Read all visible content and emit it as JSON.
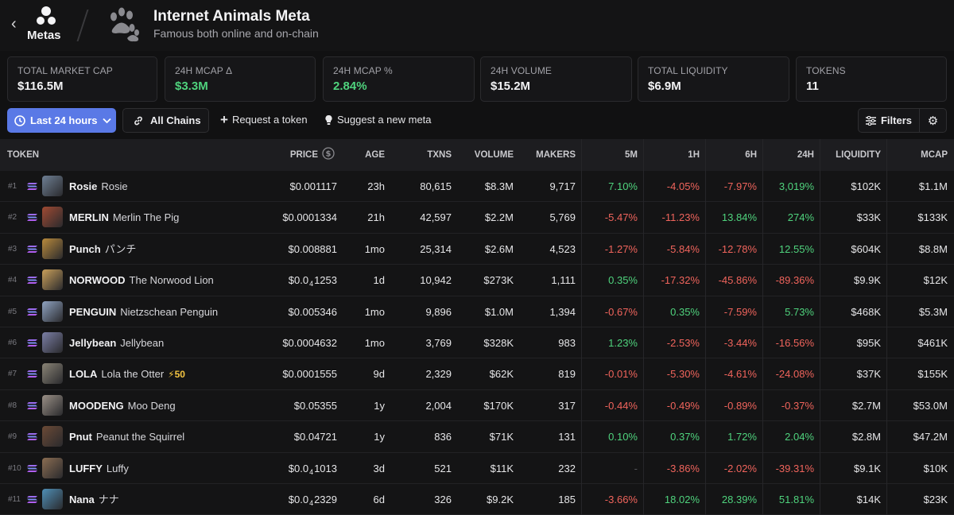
{
  "header": {
    "back_icon": "chevron-left-icon",
    "nav_label": "Metas",
    "title": "Internet Animals Meta",
    "subtitle": "Famous both online and on-chain"
  },
  "stats": [
    {
      "label": "TOTAL MARKET CAP",
      "value": "$116.5M",
      "color": "#f2f2f4"
    },
    {
      "label": "24H MCAP Δ",
      "value": "$3.3M",
      "color": "#4fd37d"
    },
    {
      "label": "24H MCAP %",
      "value": "2.84%",
      "color": "#4fd37d"
    },
    {
      "label": "24H VOLUME",
      "value": "$15.2M",
      "color": "#f2f2f4"
    },
    {
      "label": "TOTAL LIQUIDITY",
      "value": "$6.9M",
      "color": "#f2f2f4"
    },
    {
      "label": "TOKENS",
      "value": "11",
      "color": "#f2f2f4"
    }
  ],
  "toolbar": {
    "time_filter": "Last 24 hours",
    "chains": "All Chains",
    "request": "Request a token",
    "suggest": "Suggest a new meta",
    "filters": "Filters"
  },
  "colors": {
    "accent": "#5a79e6",
    "positive": "#4fd37d",
    "negative": "#f0645c"
  },
  "columns": [
    "TOKEN",
    "PRICE",
    "AGE",
    "TXNS",
    "VOLUME",
    "MAKERS",
    "5M",
    "1H",
    "6H",
    "24H",
    "LIQUIDITY",
    "MCAP"
  ],
  "tokens": [
    {
      "rank": "#1",
      "symbol": "Rosie",
      "name": "Rosie",
      "badge": "",
      "price": "$0.001117",
      "age": "23h",
      "txns": "80,615",
      "volume": "$8.3M",
      "makers": "9,717",
      "m5": "7.10%",
      "h1": "-4.05%",
      "h6": "-7.97%",
      "h24": "3,019%",
      "liquidity": "$102K",
      "mcap": "$1.1M"
    },
    {
      "rank": "#2",
      "symbol": "MERLIN",
      "name": "Merlin The Pig",
      "badge": "",
      "price": "$0.0001334",
      "age": "21h",
      "txns": "42,597",
      "volume": "$2.2M",
      "makers": "5,769",
      "m5": "-5.47%",
      "h1": "-11.23%",
      "h6": "13.84%",
      "h24": "274%",
      "liquidity": "$33K",
      "mcap": "$133K"
    },
    {
      "rank": "#3",
      "symbol": "Punch",
      "name": "パンチ",
      "badge": "",
      "price": "$0.008881",
      "age": "1mo",
      "txns": "25,314",
      "volume": "$2.6M",
      "makers": "4,523",
      "m5": "-1.27%",
      "h1": "-5.84%",
      "h6": "-12.78%",
      "h24": "12.55%",
      "liquidity": "$604K",
      "mcap": "$8.8M"
    },
    {
      "rank": "#4",
      "symbol": "NORWOOD",
      "name": "The Norwood Lion",
      "badge": "",
      "price_pre": "$0.0",
      "price_sub": "4",
      "price_post": "1253",
      "age": "1d",
      "txns": "10,942",
      "volume": "$273K",
      "makers": "1,111",
      "m5": "0.35%",
      "h1": "-17.32%",
      "h6": "-45.86%",
      "h24": "-89.36%",
      "liquidity": "$9.9K",
      "mcap": "$12K"
    },
    {
      "rank": "#5",
      "symbol": "PENGUIN",
      "name": "Nietzschean Penguin",
      "badge": "",
      "price": "$0.005346",
      "age": "1mo",
      "txns": "9,896",
      "volume": "$1.0M",
      "makers": "1,394",
      "m5": "-0.67%",
      "h1": "0.35%",
      "h6": "-7.59%",
      "h24": "5.73%",
      "liquidity": "$468K",
      "mcap": "$5.3M"
    },
    {
      "rank": "#6",
      "symbol": "Jellybean",
      "name": "Jellybean",
      "badge": "",
      "price": "$0.0004632",
      "age": "1mo",
      "txns": "3,769",
      "volume": "$328K",
      "makers": "983",
      "m5": "1.23%",
      "h1": "-2.53%",
      "h6": "-3.44%",
      "h24": "-16.56%",
      "liquidity": "$95K",
      "mcap": "$461K"
    },
    {
      "rank": "#7",
      "symbol": "LOLA",
      "name": "Lola the Otter",
      "badge": "⚡50",
      "price": "$0.0001555",
      "age": "9d",
      "txns": "2,329",
      "volume": "$62K",
      "makers": "819",
      "m5": "-0.01%",
      "h1": "-5.30%",
      "h6": "-4.61%",
      "h24": "-24.08%",
      "liquidity": "$37K",
      "mcap": "$155K"
    },
    {
      "rank": "#8",
      "symbol": "MOODENG",
      "name": "Moo Deng",
      "badge": "",
      "price": "$0.05355",
      "age": "1y",
      "txns": "2,004",
      "volume": "$170K",
      "makers": "317",
      "m5": "-0.44%",
      "h1": "-0.49%",
      "h6": "-0.89%",
      "h24": "-0.37%",
      "liquidity": "$2.7M",
      "mcap": "$53.0M"
    },
    {
      "rank": "#9",
      "symbol": "Pnut",
      "name": "Peanut the Squirrel",
      "badge": "",
      "price": "$0.04721",
      "age": "1y",
      "txns": "836",
      "volume": "$71K",
      "makers": "131",
      "m5": "0.10%",
      "h1": "0.37%",
      "h6": "1.72%",
      "h24": "2.04%",
      "liquidity": "$2.8M",
      "mcap": "$47.2M"
    },
    {
      "rank": "#10",
      "symbol": "LUFFY",
      "name": "Luffy",
      "badge": "",
      "price_pre": "$0.0",
      "price_sub": "4",
      "price_post": "1013",
      "age": "3d",
      "txns": "521",
      "volume": "$11K",
      "makers": "232",
      "m5": "-",
      "h1": "-3.86%",
      "h6": "-2.02%",
      "h24": "-39.31%",
      "liquidity": "$9.1K",
      "mcap": "$10K"
    },
    {
      "rank": "#11",
      "symbol": "Nana",
      "name": "ナナ",
      "badge": "",
      "price_pre": "$0.0",
      "price_sub": "4",
      "price_post": "2329",
      "age": "6d",
      "txns": "326",
      "volume": "$9.2K",
      "makers": "185",
      "m5": "-3.66%",
      "h1": "18.02%",
      "h6": "28.39%",
      "h24": "51.81%",
      "liquidity": "$14K",
      "mcap": "$23K"
    }
  ]
}
